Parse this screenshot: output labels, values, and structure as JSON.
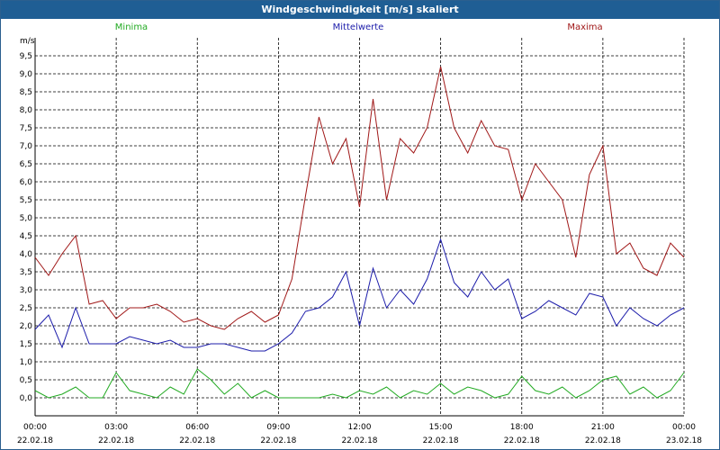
{
  "window": {
    "title": "Windgeschwindigkeit [m/s] skaliert"
  },
  "chart_data": {
    "type": "line",
    "title": "Windgeschwindigkeit [m/s] skaliert",
    "ylabel": "m/s",
    "ylim": [
      -0.5,
      10.0
    ],
    "xlim": [
      0,
      24
    ],
    "yticks": [
      "0,0",
      "0,5",
      "1,0",
      "1,5",
      "2,0",
      "2,5",
      "3,0",
      "3,5",
      "4,0",
      "4,5",
      "5,0",
      "5,5",
      "6,0",
      "6,5",
      "7,0",
      "7,5",
      "8,0",
      "8,5",
      "9,0",
      "9,5"
    ],
    "ytick_values": [
      0,
      0.5,
      1,
      1.5,
      2,
      2.5,
      3,
      3.5,
      4,
      4.5,
      5,
      5.5,
      6,
      6.5,
      7,
      7.5,
      8,
      8.5,
      9,
      9.5
    ],
    "xticks": [
      {
        "time": "00:00",
        "date": "22.02.18"
      },
      {
        "time": "03:00",
        "date": "22.02.18"
      },
      {
        "time": "06:00",
        "date": "22.02.18"
      },
      {
        "time": "09:00",
        "date": "22.02.18"
      },
      {
        "time": "12:00",
        "date": "22.02.18"
      },
      {
        "time": "15:00",
        "date": "22.02.18"
      },
      {
        "time": "18:00",
        "date": "22.02.18"
      },
      {
        "time": "21:00",
        "date": "22.02.18"
      },
      {
        "time": "00:00",
        "date": "23.02.18"
      }
    ],
    "xtick_values": [
      0,
      3,
      6,
      9,
      12,
      15,
      18,
      21,
      24
    ],
    "grid": true,
    "colors": {
      "min": "#22aa22",
      "mean": "#1c1caa",
      "max": "#a01818"
    },
    "series": [
      {
        "name": "Minima",
        "color": "#22aa22",
        "x": [
          0,
          0.5,
          1,
          1.5,
          2,
          2.5,
          3,
          3.5,
          4,
          4.5,
          5,
          5.5,
          6,
          6.5,
          7,
          7.5,
          8,
          8.5,
          9,
          9.5,
          10,
          10.5,
          11,
          11.5,
          12,
          12.5,
          13,
          13.5,
          14,
          14.5,
          15,
          15.5,
          16,
          16.5,
          17,
          17.5,
          18,
          18.5,
          19,
          19.5,
          20,
          20.5,
          21,
          21.5,
          22,
          22.5,
          23,
          23.5,
          24
        ],
        "values": [
          0.2,
          0.0,
          0.1,
          0.3,
          0.0,
          0.0,
          0.7,
          0.2,
          0.1,
          0.0,
          0.3,
          0.1,
          0.8,
          0.5,
          0.1,
          0.4,
          0.0,
          0.2,
          0.0,
          0.0,
          0.0,
          0.0,
          0.1,
          0.0,
          0.2,
          0.1,
          0.3,
          0.0,
          0.2,
          0.1,
          0.4,
          0.1,
          0.3,
          0.2,
          0.0,
          0.1,
          0.6,
          0.2,
          0.1,
          0.3,
          0.0,
          0.2,
          0.5,
          0.6,
          0.1,
          0.3,
          0.0,
          0.2,
          0.7
        ]
      },
      {
        "name": "Mittelwerte",
        "color": "#1c1caa",
        "x": [
          0,
          0.5,
          1,
          1.5,
          2,
          2.5,
          3,
          3.5,
          4,
          4.5,
          5,
          5.5,
          6,
          6.5,
          7,
          7.5,
          8,
          8.5,
          9,
          9.5,
          10,
          10.5,
          11,
          11.5,
          12,
          12.5,
          13,
          13.5,
          14,
          14.5,
          15,
          15.5,
          16,
          16.5,
          17,
          17.5,
          18,
          18.5,
          19,
          19.5,
          20,
          20.5,
          21,
          21.5,
          22,
          22.5,
          23,
          23.5,
          24
        ],
        "values": [
          1.9,
          2.3,
          1.4,
          2.5,
          1.5,
          1.5,
          1.5,
          1.7,
          1.6,
          1.5,
          1.6,
          1.4,
          1.4,
          1.5,
          1.5,
          1.4,
          1.3,
          1.3,
          1.5,
          1.8,
          2.4,
          2.5,
          2.8,
          3.5,
          2.0,
          3.6,
          2.5,
          3.0,
          2.6,
          3.3,
          4.4,
          3.2,
          2.8,
          3.5,
          3.0,
          3.3,
          2.2,
          2.4,
          2.7,
          2.5,
          2.3,
          2.9,
          2.8,
          2.0,
          2.5,
          2.2,
          2.0,
          2.3,
          2.5
        ]
      },
      {
        "name": "Maxima",
        "color": "#a01818",
        "x": [
          0,
          0.5,
          1,
          1.5,
          2,
          2.5,
          3,
          3.5,
          4,
          4.5,
          5,
          5.5,
          6,
          6.5,
          7,
          7.5,
          8,
          8.5,
          9,
          9.5,
          10,
          10.5,
          11,
          11.5,
          12,
          12.5,
          13,
          13.5,
          14,
          14.5,
          15,
          15.5,
          16,
          16.5,
          17,
          17.5,
          18,
          18.5,
          19,
          19.5,
          20,
          20.5,
          21,
          21.5,
          22,
          22.5,
          23,
          23.5,
          24
        ],
        "values": [
          3.9,
          3.4,
          4.0,
          4.5,
          2.6,
          2.7,
          2.2,
          2.5,
          2.5,
          2.6,
          2.4,
          2.1,
          2.2,
          2.0,
          1.9,
          2.2,
          2.4,
          2.1,
          2.3,
          3.3,
          5.6,
          7.8,
          6.5,
          7.2,
          5.3,
          8.3,
          5.5,
          7.2,
          6.8,
          7.5,
          9.2,
          7.5,
          6.8,
          7.7,
          7.0,
          6.9,
          5.5,
          6.5,
          6.0,
          5.5,
          3.9,
          6.2,
          7.0,
          4.0,
          4.3,
          3.6,
          3.4,
          4.3,
          3.9
        ]
      }
    ]
  }
}
